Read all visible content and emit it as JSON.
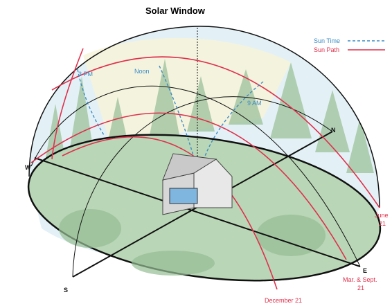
{
  "title": "Solar Window",
  "legend": [
    {
      "label": "Sun Time"
    },
    {
      "label": "Sun Path"
    }
  ],
  "time_labels": [
    "3 PM",
    "Noon",
    "9 AM"
  ],
  "directions": [
    "W",
    "N",
    "S",
    "E"
  ],
  "path_labels": [
    [
      "June",
      "21"
    ],
    [
      "Mar. & Sept.",
      "21"
    ],
    [
      "December 21"
    ]
  ]
}
